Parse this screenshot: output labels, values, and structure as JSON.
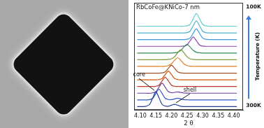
{
  "chart_data": {
    "type": "line",
    "title": "RbCoFe@KNiCo-7 nm",
    "x_label": "2 θ",
    "tick_labels": "x",
    "grid": false,
    "annotations": [
      {
        "text": "core"
      },
      {
        "text": "shell"
      }
    ],
    "temperature_axis": {
      "label": "Temperature (K)",
      "top": "100K",
      "bottom": "300K"
    },
    "xlim": [
      4.08,
      4.43
    ],
    "xticks": [
      {
        "value": 4.1,
        "label": "4.10"
      },
      4.15,
      {
        "value": 4.2,
        "label": "4.20"
      },
      4.25,
      {
        "value": 4.3,
        "label": "4.30"
      },
      4.35,
      {
        "value": 4.4,
        "label": "4.40"
      }
    ],
    "ylim": [
      -0.5,
      15.5
    ],
    "x": [
      4.09,
      4.1,
      4.11,
      4.12,
      4.13,
      4.14,
      4.15,
      4.16,
      4.17,
      4.18,
      4.19,
      4.2,
      4.21,
      4.22,
      4.23,
      4.24,
      4.25,
      4.26,
      4.27,
      4.28,
      4.29,
      4.3,
      4.31,
      4.32,
      4.33,
      4.34,
      4.35,
      4.36,
      4.37,
      4.38,
      4.39,
      4.4,
      4.41
    ],
    "series": [
      {
        "color": "#1f3f9a",
        "values": [
          0,
          0,
          0,
          0.07,
          0.33,
          1.32,
          2.2,
          1.32,
          0.33,
          0.08,
          0.05,
          0.21,
          0.35,
          0.21,
          0.05,
          0.01,
          0,
          0,
          0,
          0,
          0,
          0,
          0,
          0,
          0,
          0,
          0,
          0,
          0,
          0,
          0,
          0,
          0
        ]
      },
      {
        "color": "#2a56c6",
        "values": [
          1,
          1,
          1,
          1,
          1.05,
          1.24,
          1.96,
          2.6,
          1.96,
          1.24,
          1.06,
          1.04,
          1.15,
          1.25,
          1.15,
          1.04,
          1.01,
          1,
          1,
          1,
          1,
          1,
          1,
          1,
          1,
          1,
          1,
          1,
          1,
          1,
          1,
          1,
          1
        ]
      },
      {
        "color": "#6b3fa0",
        "values": [
          2,
          2,
          2,
          2,
          2,
          2.05,
          2.23,
          2.9,
          3.5,
          2.9,
          2.24,
          2.08,
          2.12,
          2.2,
          2.12,
          2.03,
          2.01,
          2,
          2,
          2,
          2,
          2,
          2,
          2,
          2,
          2,
          2,
          2,
          2,
          2,
          2,
          2,
          2
        ]
      },
      {
        "color": "#c0392b",
        "values": [
          3,
          3,
          3,
          3,
          3,
          3,
          3.04,
          3.21,
          3.84,
          4.4,
          3.84,
          3.21,
          3.04,
          3,
          3,
          3,
          3,
          3,
          3,
          3,
          3,
          3,
          3,
          3,
          3,
          3,
          3,
          3,
          3,
          3,
          3,
          3,
          3
        ]
      },
      {
        "color": "#d35400",
        "values": [
          4,
          4,
          4,
          4,
          4,
          4,
          4,
          4.04,
          4.2,
          4.78,
          5.3,
          4.78,
          4.2,
          4.04,
          4,
          4,
          4,
          4,
          4,
          4,
          4,
          4,
          4,
          4,
          4,
          4,
          4,
          4,
          4,
          4,
          4,
          4,
          4
        ]
      },
      {
        "color": "#a0522d",
        "values": [
          5,
          5,
          5,
          5,
          5,
          5,
          5,
          5,
          5.04,
          5.18,
          5.72,
          6.2,
          5.72,
          5.18,
          5.04,
          5,
          5,
          5,
          5,
          5,
          5,
          5,
          5,
          5,
          5,
          5,
          5,
          5,
          5,
          5,
          5,
          5,
          5
        ]
      },
      {
        "color": "#e67e22",
        "values": [
          6,
          6,
          6,
          6,
          6,
          6,
          6,
          6,
          6,
          6.04,
          6.13,
          6.39,
          6.91,
          7.3,
          6.91,
          6.39,
          6.13,
          6.04,
          6,
          6,
          6,
          6,
          6,
          6,
          6,
          6,
          6,
          6,
          6,
          6,
          6,
          6,
          6
        ]
      },
      {
        "color": "#7a9a3a",
        "values": [
          7,
          7,
          7,
          7,
          7,
          7,
          7,
          7,
          7,
          7,
          7.05,
          7.15,
          7.45,
          8.05,
          8.5,
          8.05,
          7.45,
          7.15,
          7.05,
          7,
          7,
          7,
          7,
          7,
          7,
          7,
          7,
          7,
          7,
          7,
          7,
          7,
          7
        ]
      },
      {
        "color": "#2e8b57",
        "values": [
          8,
          8,
          8,
          8,
          8,
          8,
          8,
          8,
          8,
          8,
          8,
          8,
          8.04,
          8.13,
          8.39,
          8.91,
          9.3,
          8.91,
          8.39,
          8.13,
          8.04,
          8,
          8,
          8,
          8,
          8,
          8,
          8,
          8,
          8,
          8,
          8,
          8
        ]
      },
      {
        "color": "#8e44ad",
        "values": [
          9,
          9,
          9,
          9,
          9,
          9,
          9,
          9,
          9,
          9,
          9,
          9,
          9,
          9,
          9,
          9.04,
          9.21,
          9.84,
          10.4,
          9.84,
          9.21,
          9.04,
          9,
          9,
          9,
          9,
          9,
          9,
          9,
          9,
          9,
          9,
          9
        ]
      },
      {
        "color": "#3a9ad9",
        "values": [
          10,
          10,
          10,
          10,
          10,
          10,
          10,
          10,
          10,
          10,
          10,
          10,
          10,
          10,
          10,
          10,
          10.05,
          10.24,
          10.96,
          11.6,
          10.96,
          10.24,
          10.05,
          10,
          10,
          10,
          10,
          10,
          10,
          10,
          10,
          10,
          10
        ]
      },
      {
        "color": "#4fb3c9",
        "values": [
          11,
          11,
          11,
          11,
          11,
          11,
          11,
          11,
          11,
          11,
          11,
          11,
          11,
          11,
          11,
          11,
          11.05,
          11.27,
          12.08,
          12.8,
          12.08,
          11.27,
          11.05,
          11,
          11,
          11,
          11,
          11,
          11,
          11,
          11,
          11,
          11
        ]
      },
      {
        "color": "#66cccc",
        "values": [
          12,
          12,
          12,
          12,
          12,
          12,
          12,
          12,
          12,
          12,
          12,
          12,
          12,
          12,
          12,
          12,
          12.06,
          12.29,
          13.14,
          13.9,
          13.14,
          12.29,
          12.06,
          12,
          12,
          12,
          12,
          12,
          12,
          12,
          12,
          12,
          12
        ]
      }
    ]
  }
}
